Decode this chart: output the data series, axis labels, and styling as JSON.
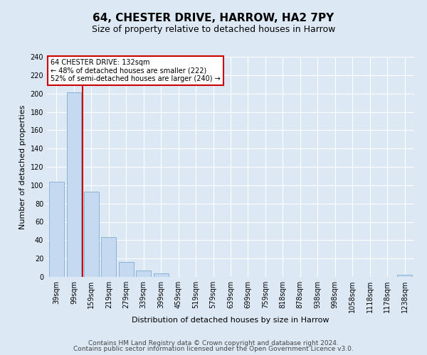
{
  "title": "64, CHESTER DRIVE, HARROW, HA2 7PY",
  "subtitle": "Size of property relative to detached houses in Harrow",
  "xlabel": "Distribution of detached houses by size in Harrow",
  "ylabel": "Number of detached properties",
  "bar_labels": [
    "39sqm",
    "99sqm",
    "159sqm",
    "219sqm",
    "279sqm",
    "339sqm",
    "399sqm",
    "459sqm",
    "519sqm",
    "579sqm",
    "639sqm",
    "699sqm",
    "759sqm",
    "818sqm",
    "878sqm",
    "938sqm",
    "998sqm",
    "1058sqm",
    "1118sqm",
    "1178sqm",
    "1238sqm"
  ],
  "bar_values": [
    104,
    201,
    93,
    43,
    16,
    7,
    4,
    0,
    0,
    0,
    0,
    0,
    0,
    0,
    0,
    0,
    0,
    0,
    0,
    0,
    2
  ],
  "bar_color": "#c5d9f1",
  "bar_edge_color": "#8ab4d4",
  "property_sqm": 132,
  "annotation_title": "64 CHESTER DRIVE: 132sqm",
  "annotation_line1": "← 48% of detached houses are smaller (222)",
  "annotation_line2": "52% of semi-detached houses are larger (240) →",
  "annotation_box_color": "#ffffff",
  "annotation_box_edge": "#cc0000",
  "vline_color": "#cc0000",
  "ylim": [
    0,
    240
  ],
  "yticks": [
    0,
    20,
    40,
    60,
    80,
    100,
    120,
    140,
    160,
    180,
    200,
    220,
    240
  ],
  "footer1": "Contains HM Land Registry data © Crown copyright and database right 2024.",
  "footer2": "Contains public sector information licensed under the Open Government Licence v3.0.",
  "background_color": "#dce9f5",
  "plot_bg_color": "#dce9f5",
  "grid_color": "#ffffff",
  "title_fontsize": 11,
  "subtitle_fontsize": 9,
  "axis_label_fontsize": 8,
  "tick_fontsize": 7,
  "footer_fontsize": 6.5,
  "ann_fontsize": 7
}
